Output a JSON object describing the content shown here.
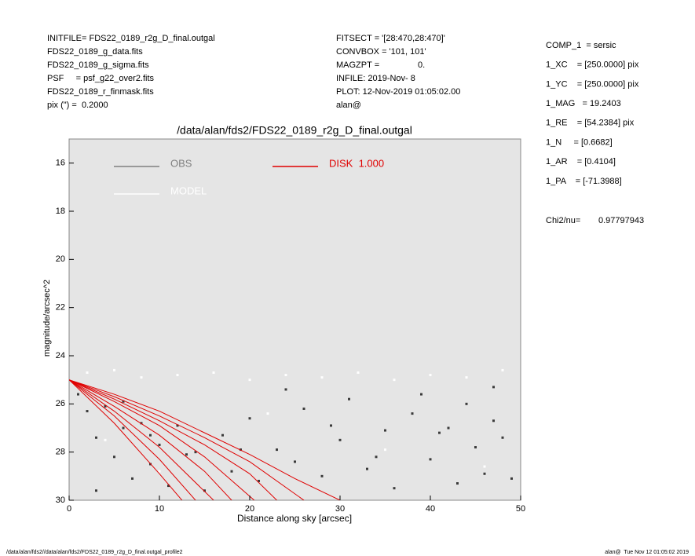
{
  "info": {
    "left": [
      "INITFILE= FDS22_0189_r2g_D_final.outgal",
      "FDS22_0189_g_data.fits",
      "FDS22_0189_g_sigma.fits",
      "PSF     = psf_g22_over2.fits",
      "FDS22_0189_r_finmask.fits",
      "pix (\") =  0.2000"
    ],
    "middle": [
      "FITSECT = '[28:470,28:470]'",
      "CONVBOX = '101, 101'",
      "MAGZPT =                0.",
      "INFILE: 2019-Nov- 8",
      "PLOT: 12-Nov-2019 01:05:02.00",
      "alan@"
    ],
    "right": [
      "COMP_1  = sersic",
      "1_XC    = [250.0000] pix",
      "1_YC    = [250.0000] pix",
      "1_MAG   = 19.2403",
      "1_RE    = [54.2384] pix",
      "1_N     = [0.6682]",
      "1_AR    = [0.4104]",
      "1_PA    = [-71.3988]"
    ],
    "chi_label": "Chi2/nu=",
    "chi_value": "0.97797943",
    "footer_left": "/data/alan/fds2//data/alan/fds2/FDS22_0189_r2g_D_final.outgal_profile2",
    "footer_right": "alan@  Tue Nov 12 01:05:02 2019"
  },
  "chart_data": {
    "type": "scatter",
    "title": "/data/alan/fds2/FDS22_0189_r2g_D_final.outgal",
    "x_label": "Distance along sky [arcsec]",
    "y_label": "magnitude/arcsec^2",
    "xlim": [
      0,
      50
    ],
    "xticks": [
      0,
      10,
      20,
      30,
      40,
      50
    ],
    "ylim": [
      30,
      15
    ],
    "yticks": [
      16,
      18,
      20,
      22,
      24,
      26,
      28,
      30
    ],
    "background": "#e5e5e5",
    "series": [
      {
        "name": "OBS",
        "color": "#808080",
        "point_color": "#3a3a3a",
        "x": [
          1,
          2,
          3,
          4,
          5,
          6,
          7,
          8,
          9,
          10,
          11,
          12,
          14,
          15,
          17,
          18,
          20,
          21,
          23,
          25,
          26,
          28,
          30,
          31,
          33,
          35,
          36,
          38,
          40,
          41,
          43,
          44,
          45,
          46,
          47,
          48,
          49,
          3,
          6,
          9,
          13,
          19,
          24,
          29,
          34,
          39,
          42,
          47
        ],
        "values": [
          25.6,
          26.3,
          27.4,
          26.1,
          28.2,
          27.0,
          29.1,
          26.8,
          28.5,
          27.7,
          29.4,
          26.9,
          28.0,
          29.6,
          27.3,
          28.8,
          26.6,
          29.2,
          27.9,
          28.4,
          26.2,
          29.0,
          27.5,
          25.8,
          28.7,
          27.1,
          29.5,
          26.4,
          28.3,
          27.2,
          29.3,
          26.0,
          27.8,
          28.9,
          26.7,
          27.4,
          29.1,
          29.6,
          25.9,
          27.3,
          28.1,
          27.9,
          25.4,
          26.9,
          28.2,
          25.6,
          27.0,
          25.3
        ]
      },
      {
        "name": "MODEL",
        "color": "#ffffff",
        "x": [
          2,
          5,
          8,
          12,
          16,
          20,
          24,
          28,
          32,
          36,
          40,
          44,
          48,
          4,
          10,
          22,
          35,
          46
        ],
        "values": [
          24.7,
          24.6,
          24.9,
          24.8,
          24.7,
          25.0,
          24.8,
          24.9,
          24.7,
          25.0,
          24.8,
          24.9,
          24.6,
          27.5,
          28.8,
          26.4,
          27.9,
          28.6
        ]
      },
      {
        "name": "DISK  1.000",
        "color": "#e00000",
        "lines": [
          {
            "x": [
              0,
              5,
              10,
              12.5
            ],
            "values": [
              25,
              26.8,
              28.9,
              30
            ]
          },
          {
            "x": [
              0,
              5,
              10,
              14
            ],
            "values": [
              25,
              26.5,
              28.3,
              30
            ]
          },
          {
            "x": [
              0,
              5,
              10,
              16
            ],
            "values": [
              25,
              26.3,
              27.8,
              30
            ]
          },
          {
            "x": [
              0,
              5,
              10,
              15,
              18
            ],
            "values": [
              25,
              26.1,
              27.3,
              28.8,
              30
            ]
          },
          {
            "x": [
              0,
              5,
              10,
              15,
              20.5
            ],
            "values": [
              25,
              25.9,
              26.9,
              28.2,
              30
            ]
          },
          {
            "x": [
              0,
              5,
              10,
              15,
              20,
              23
            ],
            "values": [
              25,
              25.8,
              26.7,
              27.7,
              28.9,
              30
            ]
          },
          {
            "x": [
              0,
              5,
              10,
              15,
              20,
              26
            ],
            "values": [
              25,
              25.7,
              26.5,
              27.4,
              28.4,
              30
            ]
          },
          {
            "x": [
              0,
              5,
              10,
              15,
              20,
              25,
              30
            ],
            "values": [
              25,
              25.6,
              26.3,
              27.2,
              28.1,
              29.1,
              30
            ]
          }
        ]
      }
    ]
  }
}
